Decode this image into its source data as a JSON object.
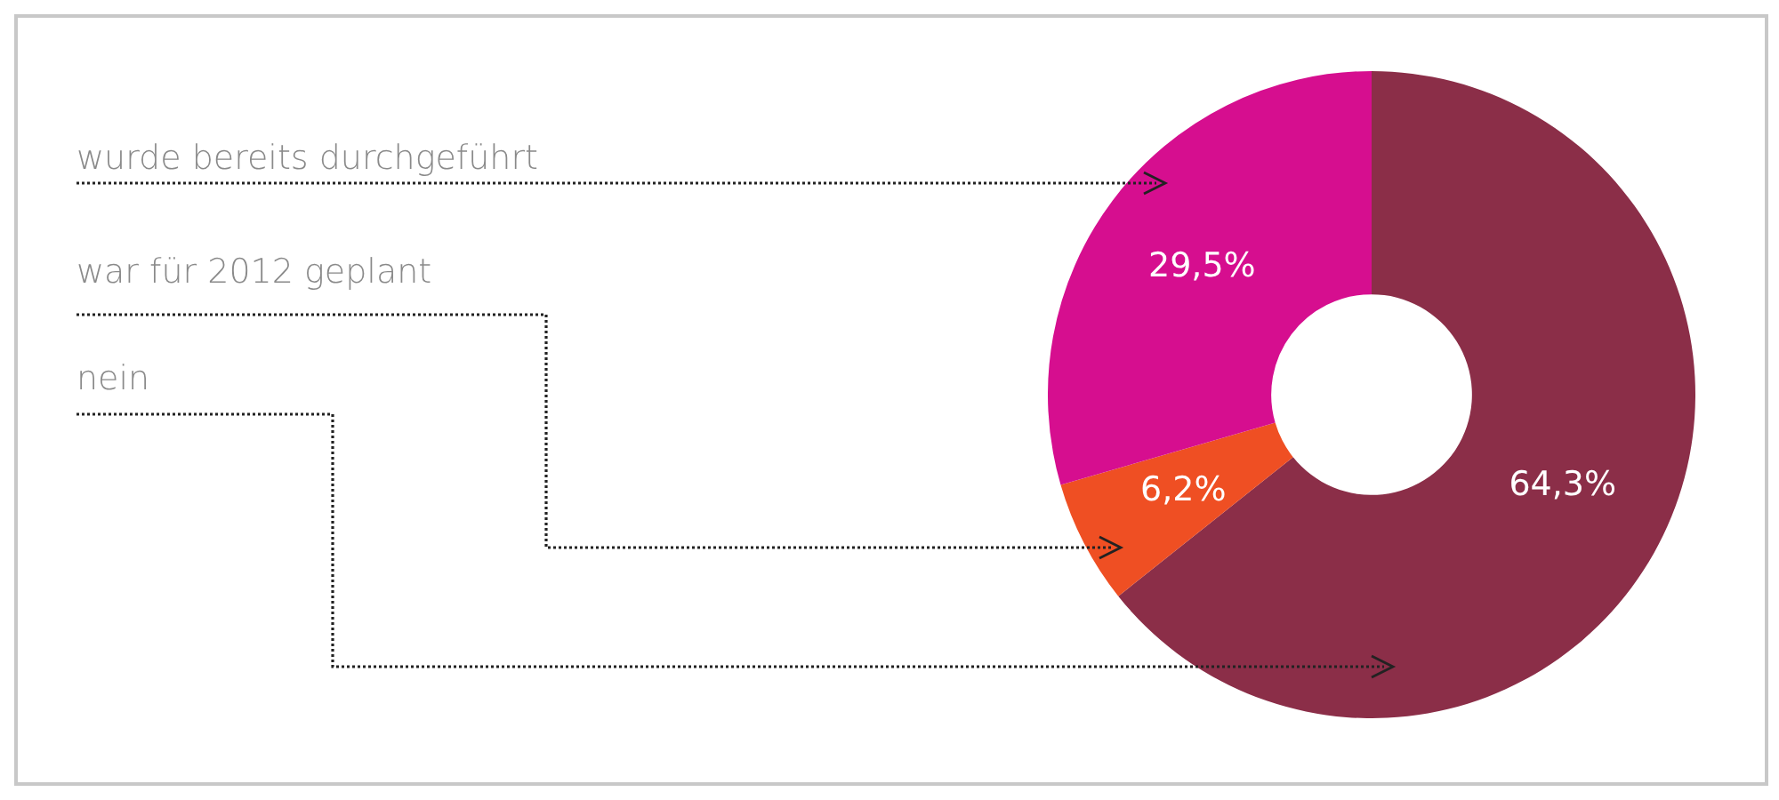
{
  "chart_data": {
    "type": "donut",
    "categories": [
      "nein",
      "war für 2012 geplant",
      "wurde bereits durchgeführt"
    ],
    "values": [
      64.3,
      6.2,
      29.5
    ],
    "colors": [
      "#8b2e48",
      "#ef4f23",
      "#d60e8f"
    ],
    "value_labels": [
      "64,3%",
      "6,2%",
      "29,5%"
    ]
  }
}
